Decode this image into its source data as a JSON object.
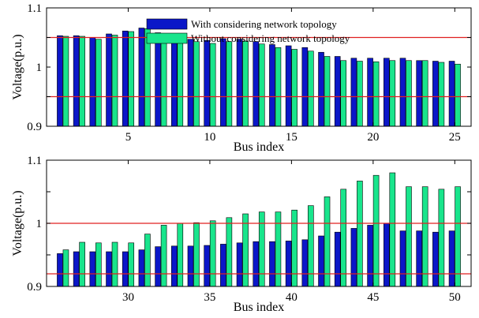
{
  "colors": {
    "series1": "#0b17c8",
    "series2": "#19e58c",
    "ref_line": "#e02020",
    "axis": "#000000",
    "bar_edge": "#000000"
  },
  "chart_data": [
    {
      "type": "bar",
      "xlabel": "Bus index",
      "ylabel": "Voltage(p.u.)",
      "ylim": [
        0.9,
        1.1
      ],
      "xlim": [
        0,
        26
      ],
      "yticks": [
        0.9,
        1,
        1.1
      ],
      "ytick_labels": [
        "0.9",
        "1",
        "1.1"
      ],
      "xticks": [
        5,
        10,
        15,
        20,
        25
      ],
      "xtick_labels": [
        "5",
        "10",
        "15",
        "20",
        "25"
      ],
      "grid": false,
      "legend_position": "top-center",
      "reference_lines": [
        1.05,
        0.95
      ],
      "categories": [
        1,
        2,
        3,
        4,
        5,
        6,
        7,
        8,
        9,
        10,
        11,
        12,
        13,
        14,
        15,
        16,
        17,
        18,
        19,
        20,
        21,
        22,
        23,
        24,
        25
      ],
      "series": [
        {
          "name": "With considering network topology",
          "values": [
            1.053,
            1.053,
            1.05,
            1.056,
            1.061,
            1.066,
            1.058,
            1.05,
            1.047,
            1.045,
            1.048,
            1.047,
            1.043,
            1.038,
            1.036,
            1.033,
            1.025,
            1.018,
            1.015,
            1.015,
            1.015,
            1.015,
            1.011,
            1.01,
            1.01
          ]
        },
        {
          "name": "Without considering network topology",
          "values": [
            1.052,
            1.052,
            1.047,
            1.054,
            1.06,
            1.065,
            1.056,
            1.047,
            1.043,
            1.04,
            1.043,
            1.044,
            1.039,
            1.033,
            1.03,
            1.027,
            1.018,
            1.011,
            1.01,
            1.009,
            1.011,
            1.011,
            1.011,
            1.008,
            1.005
          ]
        }
      ]
    },
    {
      "type": "bar",
      "xlabel": "Bus index",
      "ylabel": "Voltage(p.u.)",
      "ylim": [
        0.9,
        1.1
      ],
      "xlim": [
        25,
        51
      ],
      "yticks": [
        0.9,
        1,
        1.1
      ],
      "ytick_labels": [
        "0.9",
        "1",
        "1.1"
      ],
      "xticks": [
        30,
        35,
        40,
        45,
        50
      ],
      "xtick_labels": [
        "30",
        "35",
        "40",
        "45",
        "50"
      ],
      "grid": false,
      "reference_lines": [
        1.0,
        0.92
      ],
      "categories": [
        26,
        27,
        28,
        29,
        30,
        31,
        32,
        33,
        34,
        35,
        36,
        37,
        38,
        39,
        40,
        41,
        42,
        43,
        44,
        45,
        46,
        47,
        48,
        49,
        50
      ],
      "series": [
        {
          "name": "With considering network topology",
          "values": [
            0.952,
            0.955,
            0.955,
            0.955,
            0.955,
            0.958,
            0.963,
            0.964,
            0.964,
            0.965,
            0.967,
            0.969,
            0.971,
            0.971,
            0.972,
            0.974,
            0.98,
            0.986,
            0.992,
            0.997,
            1.0,
            0.988,
            0.988,
            0.986,
            0.988
          ]
        },
        {
          "name": "Without considering network topology",
          "values": [
            0.958,
            0.97,
            0.969,
            0.97,
            0.969,
            0.983,
            0.997,
            1.0,
            1.001,
            1.004,
            1.009,
            1.015,
            1.018,
            1.018,
            1.021,
            1.028,
            1.042,
            1.054,
            1.067,
            1.076,
            1.08,
            1.058,
            1.058,
            1.054,
            1.058
          ]
        }
      ]
    }
  ]
}
